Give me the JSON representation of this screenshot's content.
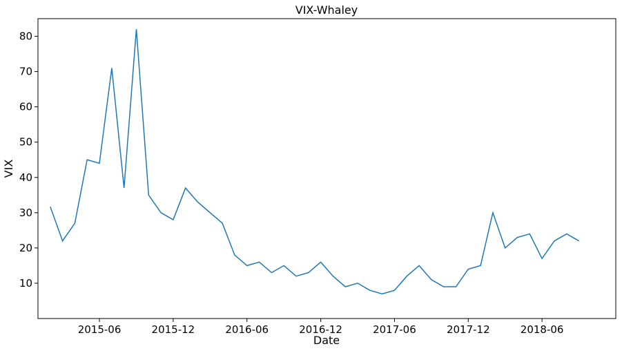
{
  "chart_data": {
    "type": "line",
    "title": "VIX-Whaley",
    "x_label": "Date",
    "y_label": "VIX",
    "x": [
      "2015-02",
      "2015-03",
      "2015-04",
      "2015-05",
      "2015-06",
      "2015-07",
      "2015-08",
      "2015-09",
      "2015-10",
      "2015-11",
      "2015-12",
      "2016-01",
      "2016-02",
      "2016-03",
      "2016-04",
      "2016-05",
      "2016-06",
      "2016-07",
      "2016-08",
      "2016-09",
      "2016-10",
      "2016-11",
      "2016-12",
      "2017-01",
      "2017-02",
      "2017-03",
      "2017-04",
      "2017-05",
      "2017-06",
      "2017-07",
      "2017-08",
      "2017-09",
      "2017-10",
      "2017-11",
      "2017-12",
      "2018-01",
      "2018-02",
      "2018-03",
      "2018-04",
      "2018-05",
      "2018-06",
      "2018-07",
      "2018-08",
      "2018-09"
    ],
    "values": [
      31.7,
      22,
      27,
      45,
      44,
      71,
      37,
      82,
      35,
      30,
      28,
      37,
      33,
      30,
      27,
      18,
      15,
      16,
      13,
      15,
      12,
      13,
      16,
      12,
      9,
      10,
      8,
      7,
      8,
      12,
      15,
      11,
      9,
      9,
      14,
      15,
      30,
      20,
      23,
      24,
      17,
      22,
      24,
      22
    ],
    "color": "#1f77b4",
    "xlim": [
      "2015-01",
      "2018-12"
    ],
    "xticks": [
      "2015-06",
      "2015-12",
      "2016-06",
      "2016-12",
      "2017-06",
      "2017-12",
      "2018-06"
    ],
    "ylim": [
      0,
      85
    ],
    "yticks": [
      10,
      20,
      30,
      40,
      50,
      60,
      70,
      80
    ],
    "grid": false
  }
}
